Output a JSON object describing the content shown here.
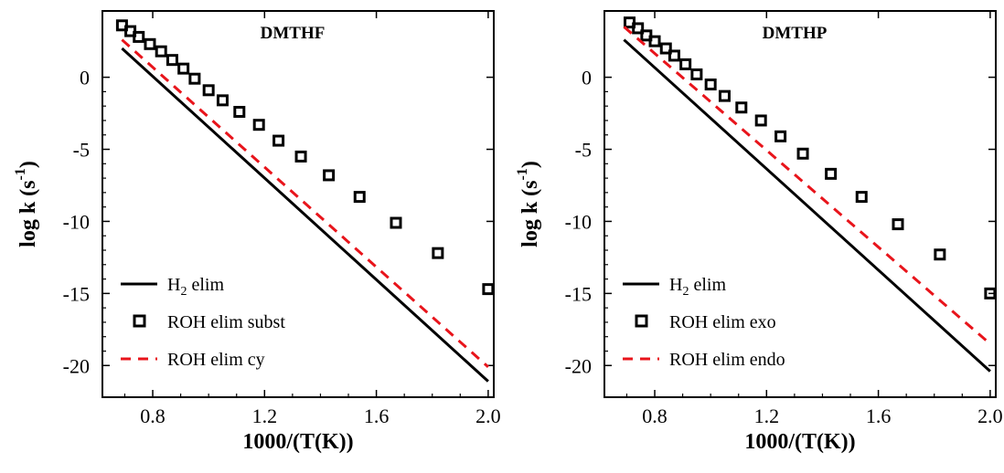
{
  "colors": {
    "h2": "#000000",
    "roh_main": "#000000",
    "roh_other": "#e8141b",
    "frame": "#000000",
    "background": "#ffffff"
  },
  "chart_data": [
    {
      "type": "scatter",
      "title": "DMTHF",
      "xlabel": "1000/(T(K))",
      "ylabel": {
        "main": "log k (s",
        "sup": "-1",
        "close": ")"
      },
      "xlim": [
        0.62,
        2.02
      ],
      "ylim": [
        -22.2,
        4.6
      ],
      "xticks": [
        0.8,
        1.2,
        1.6,
        2.0
      ],
      "xtick_labels": [
        "0.8",
        "1.2",
        "1.6",
        "2.0"
      ],
      "yticks": [
        0,
        -5,
        -10,
        -15,
        -20
      ],
      "ytick_labels": [
        "0",
        "-5",
        "-10",
        "-15",
        "-20"
      ],
      "legend_position": "bottom-left",
      "series": [
        {
          "name": "H2 elim",
          "legend": {
            "main": "H",
            "sub": "2",
            "rest": " elim"
          },
          "style": "solid",
          "color": "#000000",
          "x": [
            0.69,
            2.0
          ],
          "y": [
            2.0,
            -21.1
          ]
        },
        {
          "name": "ROH elim subst",
          "legend": {
            "main": "ROH elim subst"
          },
          "style": "square",
          "color": "#000000",
          "x": [
            0.69,
            0.72,
            0.75,
            0.79,
            0.83,
            0.87,
            0.91,
            0.95,
            1.0,
            1.05,
            1.11,
            1.18,
            1.25,
            1.33,
            1.43,
            1.54,
            1.67,
            1.82,
            2.0
          ],
          "y": [
            3.6,
            3.2,
            2.8,
            2.3,
            1.8,
            1.2,
            0.6,
            -0.1,
            -0.9,
            -1.6,
            -2.4,
            -3.3,
            -4.4,
            -5.5,
            -6.8,
            -8.3,
            -10.1,
            -12.2,
            -14.7
          ]
        },
        {
          "name": "ROH elim cy",
          "legend": {
            "main": "ROH elim cy"
          },
          "style": "dashed",
          "color": "#e8141b",
          "x": [
            0.69,
            2.0
          ],
          "y": [
            2.6,
            -20.1
          ]
        }
      ]
    },
    {
      "type": "scatter",
      "title": "DMTHP",
      "xlabel": "1000/(T(K))",
      "ylabel": {
        "main": "log k (s",
        "sup": "-1",
        "close": ")"
      },
      "xlim": [
        0.62,
        2.02
      ],
      "ylim": [
        -22.2,
        4.6
      ],
      "xticks": [
        0.8,
        1.2,
        1.6,
        2.0
      ],
      "xtick_labels": [
        "0.8",
        "1.2",
        "1.6",
        "2.0"
      ],
      "yticks": [
        0,
        -5,
        -10,
        -15,
        -20
      ],
      "ytick_labels": [
        "0",
        "-5",
        "-10",
        "-15",
        "-20"
      ],
      "legend_position": "bottom-left",
      "series": [
        {
          "name": "H2 elim",
          "legend": {
            "main": "H",
            "sub": "2",
            "rest": " elim"
          },
          "style": "solid",
          "color": "#000000",
          "x": [
            0.69,
            2.0
          ],
          "y": [
            2.6,
            -20.4
          ]
        },
        {
          "name": "ROH elim exo",
          "legend": {
            "main": "ROH elim exo"
          },
          "style": "square",
          "color": "#000000",
          "x": [
            0.71,
            0.74,
            0.77,
            0.8,
            0.84,
            0.87,
            0.91,
            0.95,
            1.0,
            1.05,
            1.11,
            1.18,
            1.25,
            1.33,
            1.43,
            1.54,
            1.67,
            1.82,
            2.0
          ],
          "y": [
            3.8,
            3.4,
            2.9,
            2.5,
            2.0,
            1.5,
            0.9,
            0.2,
            -0.5,
            -1.3,
            -2.1,
            -3.0,
            -4.1,
            -5.3,
            -6.7,
            -8.3,
            -10.2,
            -12.3,
            -15.0
          ]
        },
        {
          "name": "ROH elim endo",
          "legend": {
            "main": "ROH elim endo"
          },
          "style": "dashed",
          "color": "#e8141b",
          "x": [
            0.69,
            2.0
          ],
          "y": [
            3.5,
            -18.5
          ]
        }
      ]
    }
  ]
}
